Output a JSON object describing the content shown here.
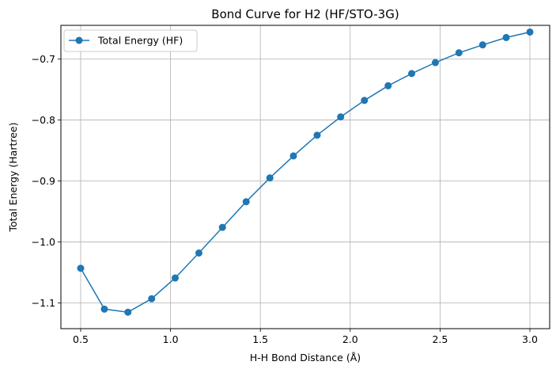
{
  "chart_data": {
    "type": "line",
    "title": "Bond Curve for H2 (HF/STO-3G)",
    "xlabel": "H-H Bond Distance (Å)",
    "ylabel": "Total Energy (Hartree)",
    "xlim": [
      0.39,
      3.11
    ],
    "ylim": [
      -1.142,
      -0.645
    ],
    "x_ticks": [
      0.5,
      1.0,
      1.5,
      2.0,
      2.5,
      3.0
    ],
    "x_tick_labels": [
      "0.5",
      "1.0",
      "1.5",
      "2.0",
      "2.5",
      "3.0"
    ],
    "y_ticks": [
      -1.1,
      -1.0,
      -0.9,
      -0.8,
      -0.7
    ],
    "y_tick_labels": [
      "−1.1",
      "−1.0",
      "−0.9",
      "−0.8",
      "−0.7"
    ],
    "grid": true,
    "legend_position": "top-left",
    "series": [
      {
        "name": "Total Energy (HF)",
        "color": "#1f77b4",
        "marker": "circle",
        "x": [
          0.5,
          0.632,
          0.763,
          0.895,
          1.026,
          1.158,
          1.289,
          1.421,
          1.553,
          1.684,
          1.816,
          1.947,
          2.079,
          2.211,
          2.342,
          2.474,
          2.605,
          2.737,
          2.868,
          3.0
        ],
        "y": [
          -1.043,
          -1.11,
          -1.115,
          -1.093,
          -1.059,
          -1.018,
          -0.976,
          -0.934,
          -0.895,
          -0.859,
          -0.825,
          -0.795,
          -0.768,
          -0.744,
          -0.724,
          -0.706,
          -0.69,
          -0.677,
          -0.665,
          -0.656
        ]
      }
    ]
  }
}
